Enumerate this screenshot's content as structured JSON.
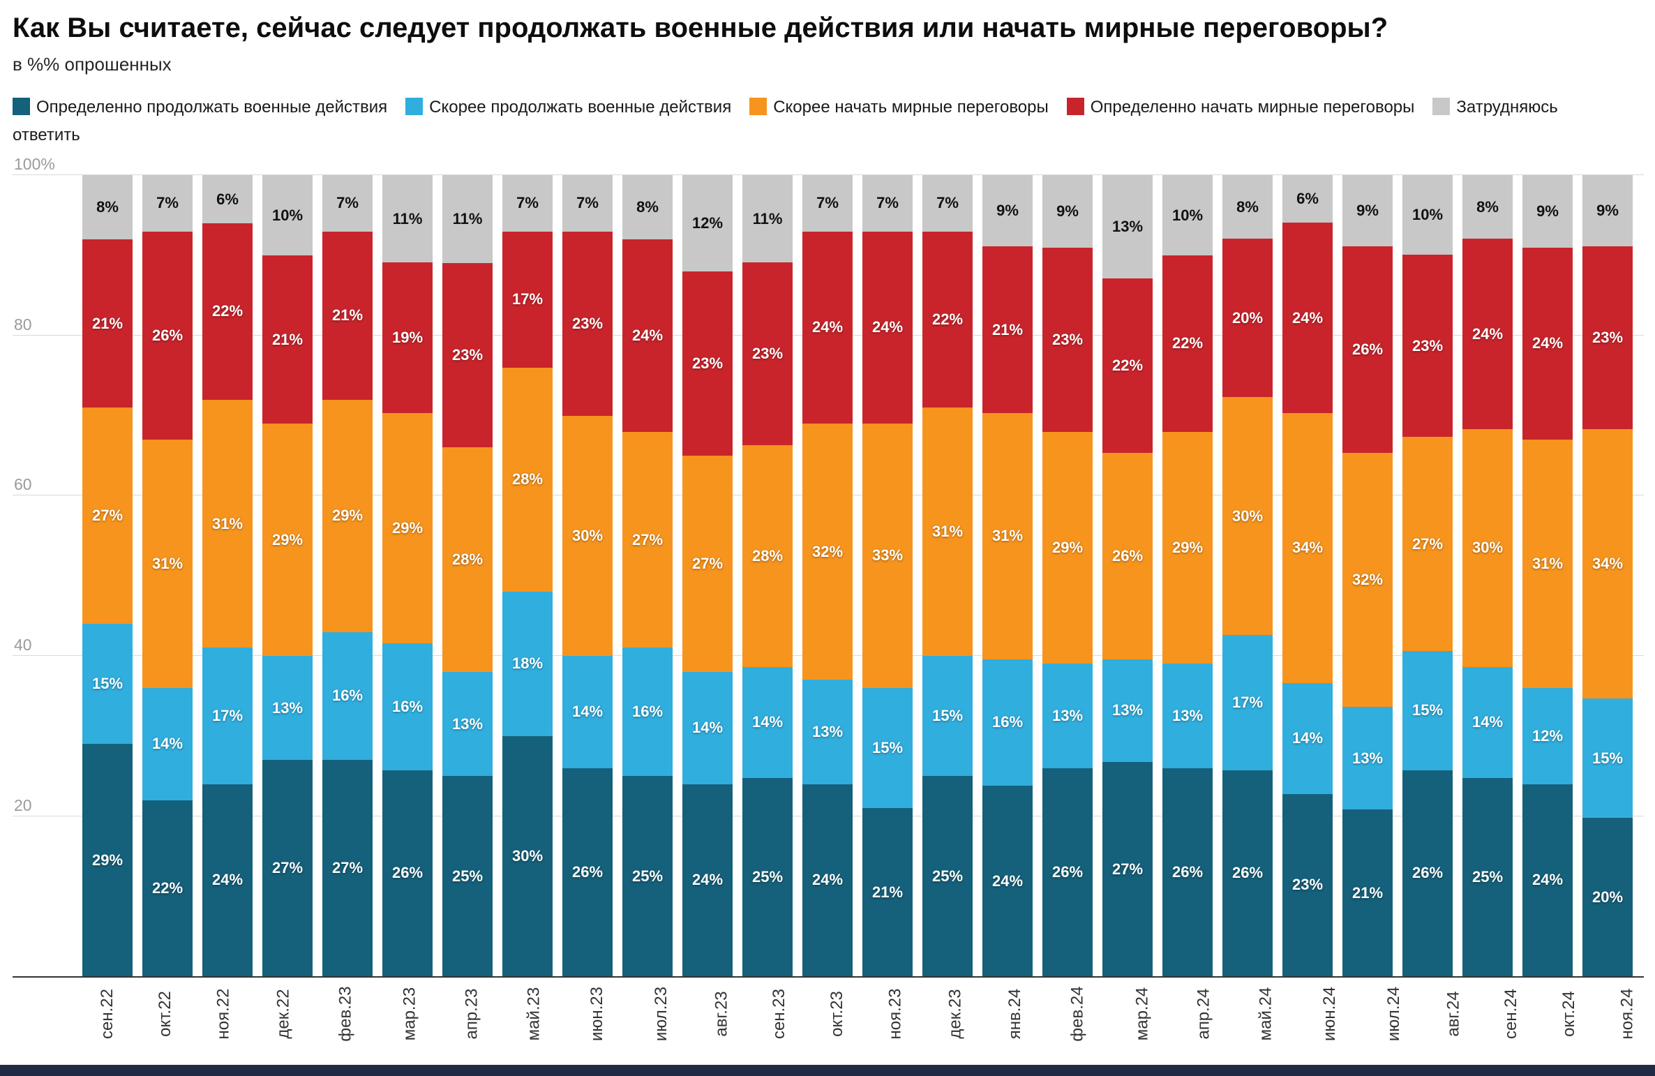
{
  "header": {
    "title": "Как Вы считаете, сейчас следует продолжать военные действия или начать мирные переговоры?",
    "subtitle": "в %% опрошенных"
  },
  "colors": {
    "definitely_continue": "#15607a",
    "rather_continue": "#30aede",
    "rather_negotiate": "#f7941d",
    "definitely_negotiate": "#c9242b",
    "hard_to_answer": "#c8c8c8",
    "footer": "#202a44"
  },
  "chart_data": {
    "type": "bar",
    "stacked": true,
    "title": "Как Вы считаете, сейчас следует продолжать военные действия или начать мирные переговоры?",
    "subtitle": "в %% опрошенных",
    "value_suffix": "%",
    "ylim": [
      0,
      100
    ],
    "grid": true,
    "legend_position": "top",
    "yticks": [
      {
        "value": 100,
        "label": "100%"
      },
      {
        "value": 80,
        "label": "80"
      },
      {
        "value": 60,
        "label": "60"
      },
      {
        "value": 40,
        "label": "40"
      },
      {
        "value": 20,
        "label": "20"
      }
    ],
    "categories": [
      "сен.22",
      "окт.22",
      "ноя.22",
      "дек.22",
      "фев.23",
      "мар.23",
      "апр.23",
      "май.23",
      "июн.23",
      "июл.23",
      "авг.23",
      "сен.23",
      "окт.23",
      "ноя.23",
      "дек.23",
      "янв.24",
      "фев.24",
      "мар.24",
      "апр.24",
      "май.24",
      "июн.24",
      "июл.24",
      "авг.24",
      "сен.24",
      "окт.24",
      "ноя.24"
    ],
    "series": [
      {
        "name": "Определенно продолжать военные действия",
        "color": "#15607a",
        "dark_label": false,
        "values": [
          29,
          22,
          24,
          27,
          27,
          26,
          25,
          30,
          26,
          25,
          24,
          25,
          24,
          21,
          25,
          24,
          26,
          27,
          26,
          26,
          23,
          21,
          26,
          25,
          24,
          20
        ]
      },
      {
        "name": "Скорее продолжать военные действия",
        "color": "#30aede",
        "dark_label": false,
        "values": [
          15,
          14,
          17,
          13,
          16,
          16,
          13,
          18,
          14,
          16,
          14,
          14,
          13,
          15,
          15,
          16,
          13,
          13,
          13,
          17,
          14,
          13,
          15,
          14,
          12,
          15
        ]
      },
      {
        "name": "Скорее начать мирные переговоры",
        "color": "#f7941d",
        "dark_label": false,
        "values": [
          27,
          31,
          31,
          29,
          29,
          29,
          28,
          28,
          30,
          27,
          27,
          28,
          32,
          33,
          31,
          31,
          29,
          26,
          29,
          30,
          34,
          32,
          27,
          30,
          31,
          34
        ]
      },
      {
        "name": "Определенно начать мирные переговоры",
        "color": "#c9242b",
        "dark_label": false,
        "values": [
          21,
          26,
          22,
          21,
          21,
          19,
          23,
          17,
          23,
          24,
          23,
          23,
          24,
          24,
          22,
          21,
          23,
          22,
          22,
          20,
          24,
          26,
          23,
          24,
          24,
          23
        ]
      },
      {
        "name": "Затрудняюсь ответить",
        "color": "#c8c8c8",
        "dark_label": true,
        "values": [
          8,
          7,
          6,
          10,
          7,
          11,
          11,
          7,
          7,
          8,
          12,
          11,
          7,
          7,
          7,
          9,
          9,
          13,
          10,
          8,
          6,
          9,
          10,
          8,
          9,
          9
        ]
      }
    ]
  }
}
